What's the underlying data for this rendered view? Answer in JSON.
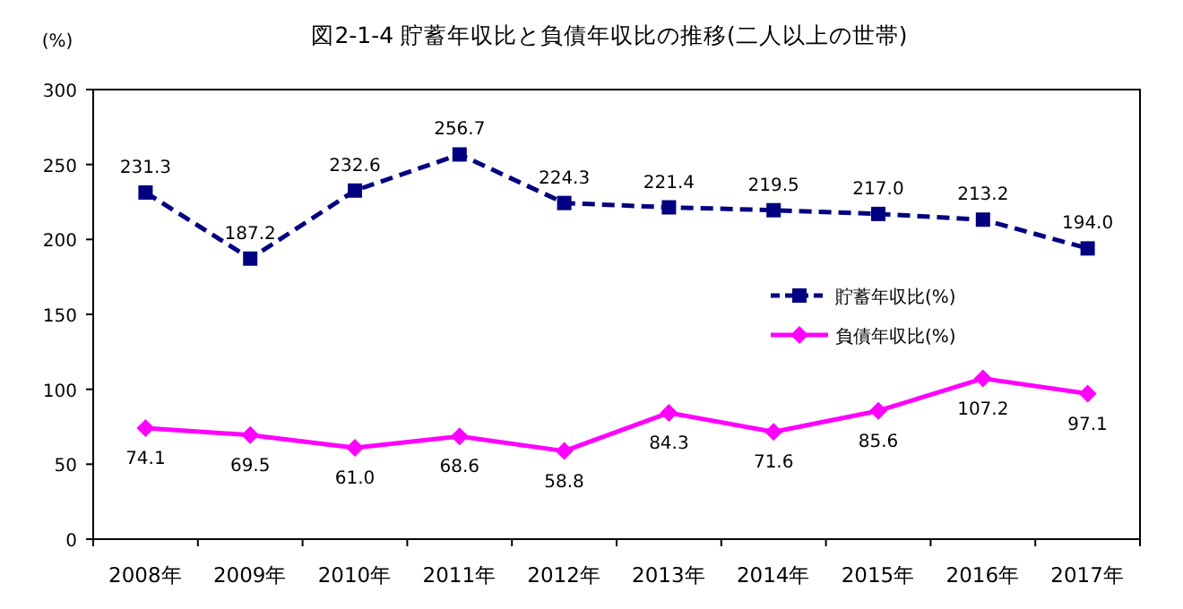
{
  "chart_data": {
    "type": "line",
    "title": "図2-1-4  貯蓄年収比と負債年収比の推移(二人以上の世帯)",
    "ylabel": "(%)",
    "categories": [
      "2008年",
      "2009年",
      "2010年",
      "2011年",
      "2012年",
      "2013年",
      "2014年",
      "2015年",
      "2016年",
      "2017年"
    ],
    "series": [
      {
        "name": "貯蓄年収比(%)",
        "color": "#000080",
        "marker": "square",
        "line_style": "dashed",
        "values": [
          231.3,
          187.2,
          232.6,
          256.7,
          224.3,
          221.4,
          219.5,
          217.0,
          213.2,
          194.0
        ],
        "value_labels": [
          "231.3",
          "187.2",
          "232.6",
          "256.7",
          "224.3",
          "221.4",
          "219.5",
          "217.0",
          "213.2",
          "194.0"
        ]
      },
      {
        "name": "負債年収比(%)",
        "color": "#ff00ff",
        "marker": "diamond",
        "line_style": "solid",
        "values": [
          74.1,
          69.5,
          61.0,
          68.6,
          58.8,
          84.3,
          71.6,
          85.6,
          107.2,
          97.1
        ],
        "value_labels": [
          "74.1",
          "69.5",
          "61.0",
          "68.6",
          "58.8",
          "84.3",
          "71.6",
          "85.6",
          "107.2",
          "97.1"
        ]
      }
    ],
    "ylim": [
      0,
      300
    ],
    "yticks": [
      0,
      50,
      100,
      150,
      200,
      250,
      300
    ],
    "grid": false,
    "legend": "right"
  }
}
